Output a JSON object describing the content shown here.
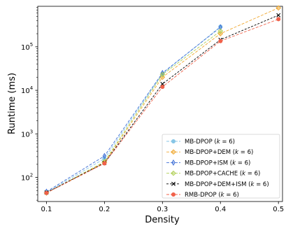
{
  "chart_data": {
    "type": "line",
    "xlabel": "Density",
    "ylabel": "Runtime (ms)",
    "yscale": "log",
    "xlim": [
      0.085,
      0.507
    ],
    "ylim": [
      28,
      850000
    ],
    "x_ticks": [
      0.1,
      0.2,
      0.3,
      0.4,
      0.5
    ],
    "x_tick_labels": [
      "0.1",
      "0.2",
      "0.3",
      "0.4",
      "0.5"
    ],
    "y_ticks": [
      100,
      1000,
      10000,
      100000
    ],
    "y_tick_labels": [
      {
        "base": "10",
        "exp": "2"
      },
      {
        "base": "10",
        "exp": "3"
      },
      {
        "base": "10",
        "exp": "4"
      },
      {
        "base": "10",
        "exp": "5"
      }
    ],
    "grid": false,
    "legend_position": "lower-right",
    "series": [
      {
        "name": "MB-DPOP (k = 6)",
        "legend_main": "MB-DPOP (",
        "legend_var": "k",
        "legend_rest": " = 6)",
        "color": "#87c6e6",
        "marker": "circle",
        "dash": "4,2",
        "x": [
          0.1,
          0.2,
          0.3,
          0.4
        ],
        "values": [
          45,
          270,
          24000,
          290000
        ]
      },
      {
        "name": "MB-DPOP+DEM (k = 6)",
        "legend_main": "MB-DPOP+DEM (",
        "legend_var": "k",
        "legend_rest": " = 6)",
        "color": "#f0a830",
        "marker": "diamond",
        "dash": "4,2",
        "x": [
          0.1,
          0.2,
          0.3,
          0.4,
          0.5
        ],
        "values": [
          44,
          220,
          20000,
          200000,
          780000
        ]
      },
      {
        "name": "MB-DPOP+ISM (k = 6)",
        "legend_main": "MB-DPOP+ISM (",
        "legend_var": "k",
        "legend_rest": " = 6)",
        "color": "#3e6fd6",
        "marker": "thin-diamond",
        "dash": "4,2",
        "x": [
          0.1,
          0.2,
          0.3,
          0.4
        ],
        "values": [
          47,
          310,
          25000,
          280000
        ]
      },
      {
        "name": "MB-DPOP+CACHE (k = 6)",
        "legend_main": "MB-DPOP+CACHE (",
        "legend_var": "k",
        "legend_rest": " = 6)",
        "color": "#b0cf55",
        "marker": "diamond",
        "dash": "4,2",
        "x": [
          0.1,
          0.2,
          0.3,
          0.4
        ],
        "values": [
          44,
          230,
          23000,
          230000
        ]
      },
      {
        "name": "MB-DPOP+DEM+ISM (k = 6)",
        "legend_main": "MB-DPOP+DEM+ISM (",
        "legend_var": "k",
        "legend_rest": " = 6)",
        "color": "#000000",
        "marker": "x",
        "dash": "3,2",
        "x": [
          0.1,
          0.2,
          0.3,
          0.4,
          0.5
        ],
        "values": [
          45,
          215,
          14000,
          145000,
          530000
        ]
      },
      {
        "name": "RMB-DPOP (k = 6)",
        "legend_main": "RMB-DPOP (",
        "legend_var": "k",
        "legend_rest": " = 6)",
        "color": "#f0614a",
        "marker": "circle",
        "dash": "4,2",
        "x": [
          0.1,
          0.2,
          0.3,
          0.4,
          0.5
        ],
        "values": [
          44,
          210,
          12000,
          135000,
          430000
        ]
      }
    ]
  }
}
